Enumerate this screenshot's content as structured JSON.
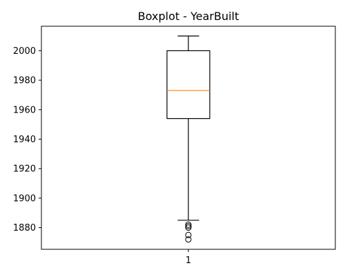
{
  "chart_data": {
    "type": "boxplot",
    "title": "Boxplot - YearBuilt",
    "xlabel": "",
    "ylabel": "",
    "categories": [
      "1"
    ],
    "ylim": [
      1865.3,
      2016.6
    ],
    "yticks": [
      1880,
      1900,
      1920,
      1940,
      1960,
      1980,
      2000
    ],
    "grid": false,
    "boxes": [
      {
        "category": "1",
        "whisker_low": 1885,
        "q1": 1954,
        "median": 1973,
        "q3": 2000,
        "whisker_high": 2010,
        "outliers": [
          1872,
          1875,
          1880,
          1881,
          1882
        ]
      }
    ],
    "colors": {
      "box": "#000000",
      "median": "#ff7f0e",
      "outlier": "#000000"
    }
  }
}
